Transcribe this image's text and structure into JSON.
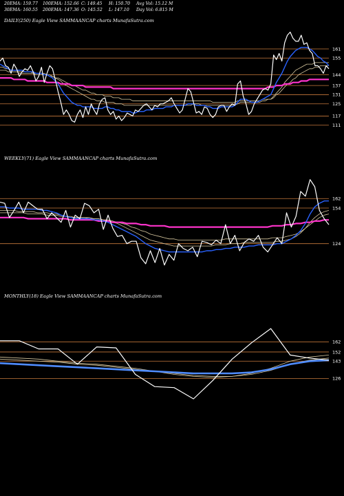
{
  "header": {
    "row1": [
      {
        "key": "ema20",
        "text": "20EMA: 159.77"
      },
      {
        "key": "ema100",
        "text": "100EMA: 152.66"
      },
      {
        "key": "close",
        "text": "C: 149.45"
      },
      {
        "key": "high",
        "text": "H: 150.70"
      },
      {
        "key": "avgvol",
        "text": "Avg Vol: 15.12  M"
      }
    ],
    "row2": [
      {
        "key": "ema30",
        "text": "30EMA: 160.55"
      },
      {
        "key": "ema200",
        "text": "200EMA: 147.36"
      },
      {
        "key": "open",
        "text": "O: 145.52"
      },
      {
        "key": "low",
        "text": "L: 147.10"
      },
      {
        "key": "dayvol",
        "text": "Day Vol: 6.815  M"
      }
    ]
  },
  "colors": {
    "background": "#000000",
    "price": "#ffffff",
    "ema_fast": "#2962ff",
    "ema_slow": "#ff33cc",
    "ema_band": "#d9c9a0",
    "level": "#c87a3c",
    "blue_alt": "#4f8cff"
  },
  "chart_data": [
    {
      "type": "line",
      "label": "DAILY(250) Eagle  View  SAMMAANCAP charts MunafaSutra.com",
      "ylim": [
        105,
        175
      ],
      "levels": [
        161,
        155,
        144,
        137,
        131,
        125,
        117,
        111
      ],
      "price": [
        153,
        155,
        150,
        149,
        145,
        151,
        148,
        143,
        146,
        148,
        147,
        150,
        146,
        140,
        143,
        149,
        139,
        145,
        150,
        148,
        141,
        133,
        126,
        118,
        121,
        118,
        114,
        113,
        118,
        121,
        116,
        123,
        118,
        125,
        121,
        118,
        125,
        128,
        129,
        121,
        118,
        120,
        115,
        117,
        114,
        116,
        119,
        118,
        117,
        121,
        120,
        122,
        124,
        125,
        123,
        121,
        124,
        123,
        125,
        125,
        126,
        127,
        129,
        125,
        122,
        119,
        121,
        128,
        135,
        133,
        126,
        119,
        120,
        118,
        123,
        122,
        118,
        116,
        118,
        123,
        124,
        124,
        120,
        123,
        125,
        124,
        138,
        140,
        130,
        125,
        118,
        120,
        125,
        128,
        131,
        134,
        135,
        134,
        138,
        157,
        154,
        158,
        153,
        165,
        170,
        172,
        168,
        166,
        166,
        170,
        164,
        165,
        160,
        158,
        150,
        150,
        148,
        145,
        150,
        148
      ],
      "ema_fast": [
        151,
        150,
        149,
        148,
        147,
        147,
        147,
        147,
        147,
        146,
        146,
        146,
        146,
        145,
        145,
        145,
        144,
        144,
        143,
        142,
        140,
        138,
        135,
        132,
        130,
        128,
        126,
        125,
        124,
        124,
        123,
        123,
        123,
        123,
        122,
        122,
        122,
        122,
        123,
        123,
        122,
        122,
        121,
        121,
        120,
        120,
        120,
        120,
        119,
        119,
        120,
        120,
        120,
        121,
        121,
        121,
        122,
        122,
        122,
        122,
        123,
        123,
        123,
        124,
        124,
        124,
        124,
        124,
        125,
        125,
        125,
        124,
        124,
        124,
        124,
        123,
        123,
        122,
        122,
        122,
        123,
        123,
        123,
        123,
        123,
        124,
        126,
        128,
        128,
        128,
        127,
        126,
        126,
        126,
        127,
        128,
        129,
        130,
        131,
        135,
        139,
        142,
        145,
        149,
        153,
        156,
        158,
        160,
        161,
        162,
        162,
        162,
        161,
        160,
        158,
        156,
        155,
        153,
        152,
        150
      ],
      "ema_slow": [
        142,
        142,
        142,
        142,
        142,
        141,
        141,
        141,
        141,
        141,
        140,
        140,
        140,
        140,
        140,
        140,
        140,
        139,
        139,
        139,
        139,
        139,
        138,
        138,
        138,
        138,
        137,
        137,
        137,
        137,
        137,
        136,
        136,
        136,
        136,
        136,
        136,
        136,
        136,
        136,
        136,
        135,
        135,
        135,
        135,
        135,
        135,
        135,
        135,
        135,
        135,
        135,
        135,
        135,
        135,
        135,
        135,
        135,
        135,
        135,
        135,
        135,
        135,
        135,
        135,
        135,
        135,
        135,
        135,
        135,
        135,
        135,
        135,
        135,
        135,
        135,
        135,
        135,
        135,
        135,
        135,
        135,
        135,
        135,
        135,
        135,
        135,
        135,
        135,
        135,
        135,
        135,
        135,
        135,
        135,
        135,
        135,
        136,
        136,
        136,
        137,
        137,
        137,
        138,
        138,
        138,
        139,
        139,
        139,
        140,
        140,
        140,
        141,
        141,
        141,
        141,
        141,
        141,
        141,
        141
      ],
      "ema_band_a": [
        149,
        149,
        148,
        148,
        147,
        147,
        147,
        146,
        146,
        146,
        146,
        146,
        145,
        145,
        145,
        145,
        145,
        144,
        144,
        143,
        142,
        141,
        140,
        138,
        137,
        136,
        135,
        134,
        133,
        132,
        131,
        130,
        129,
        128,
        128,
        127,
        127,
        127,
        126,
        126,
        126,
        126,
        125,
        125,
        125,
        124,
        124,
        124,
        124,
        124,
        124,
        124,
        124,
        124,
        124,
        124,
        124,
        124,
        124,
        124,
        124,
        124,
        124,
        124,
        124,
        124,
        124,
        124,
        124,
        124,
        125,
        125,
        125,
        124,
        124,
        124,
        124,
        124,
        124,
        124,
        124,
        124,
        124,
        124,
        124,
        124,
        125,
        126,
        126,
        126,
        126,
        126,
        126,
        126,
        126,
        127,
        127,
        128,
        128,
        130,
        132,
        134,
        136,
        139,
        141,
        143,
        145,
        147,
        148,
        149,
        150,
        151,
        151,
        151,
        152,
        152,
        152,
        152,
        152,
        152
      ],
      "ema_band_b": [
        147,
        147,
        147,
        146,
        146,
        146,
        146,
        145,
        145,
        145,
        145,
        145,
        145,
        144,
        144,
        144,
        144,
        144,
        143,
        143,
        142,
        142,
        141,
        140,
        139,
        138,
        137,
        137,
        136,
        135,
        134,
        134,
        133,
        132,
        132,
        131,
        131,
        131,
        130,
        130,
        130,
        129,
        129,
        129,
        128,
        128,
        128,
        128,
        127,
        127,
        127,
        127,
        127,
        127,
        127,
        127,
        127,
        127,
        127,
        127,
        127,
        127,
        127,
        127,
        127,
        127,
        127,
        127,
        127,
        127,
        127,
        127,
        127,
        127,
        127,
        127,
        127,
        126,
        126,
        126,
        126,
        126,
        126,
        126,
        126,
        126,
        127,
        127,
        127,
        127,
        127,
        127,
        127,
        127,
        127,
        128,
        128,
        128,
        128,
        129,
        131,
        132,
        134,
        136,
        138,
        139,
        141,
        142,
        144,
        145,
        146,
        147,
        148,
        148,
        149,
        149,
        150,
        150,
        150,
        150
      ]
    },
    {
      "type": "line",
      "label": "WEEKLY(71) Eagle  View  SAMMAANCAP charts MunafaSutra.com",
      "ylim": [
        100,
        190
      ],
      "levels": [
        162,
        154,
        124
      ],
      "price": [
        159,
        158,
        146,
        152,
        159,
        150,
        159,
        156,
        153,
        153,
        145,
        150,
        146,
        142,
        152,
        138,
        148,
        145,
        158,
        156,
        150,
        153,
        136,
        148,
        137,
        130,
        131,
        124,
        126,
        126,
        112,
        107,
        118,
        108,
        120,
        106,
        115,
        110,
        124,
        120,
        118,
        121,
        113,
        126,
        125,
        123,
        127,
        124,
        140,
        124,
        131,
        118,
        125,
        128,
        126,
        131,
        121,
        117,
        123,
        129,
        124,
        150,
        138,
        147,
        168,
        164,
        178,
        172,
        152,
        145,
        140
      ],
      "ema_fast": [
        155,
        155,
        154,
        154,
        154,
        153,
        153,
        153,
        153,
        152,
        152,
        151,
        150,
        148,
        147,
        146,
        145,
        145,
        145,
        145,
        144,
        144,
        143,
        142,
        140,
        138,
        136,
        134,
        132,
        130,
        127,
        124,
        122,
        120,
        119,
        118,
        117,
        117,
        117,
        117,
        117,
        117,
        117,
        117,
        118,
        118,
        119,
        119,
        120,
        120,
        121,
        121,
        121,
        122,
        122,
        123,
        123,
        123,
        123,
        124,
        124,
        126,
        128,
        131,
        135,
        141,
        149,
        155,
        158,
        160,
        160
      ],
      "ema_slow": [
        146,
        146,
        146,
        146,
        146,
        146,
        145,
        145,
        145,
        145,
        145,
        145,
        145,
        145,
        145,
        144,
        144,
        144,
        144,
        144,
        144,
        143,
        143,
        143,
        142,
        142,
        142,
        141,
        141,
        141,
        140,
        140,
        139,
        139,
        139,
        139,
        138,
        138,
        138,
        138,
        138,
        138,
        138,
        138,
        138,
        138,
        138,
        138,
        138,
        138,
        138,
        138,
        138,
        138,
        138,
        138,
        138,
        138,
        139,
        139,
        139,
        140,
        140,
        141,
        141,
        142,
        142,
        143,
        143,
        144,
        144
      ],
      "ema_band_a": [
        152,
        152,
        152,
        152,
        151,
        151,
        151,
        151,
        150,
        150,
        150,
        149,
        149,
        148,
        147,
        147,
        146,
        146,
        146,
        146,
        145,
        145,
        144,
        143,
        142,
        141,
        139,
        137,
        135,
        133,
        131,
        129,
        127,
        126,
        125,
        124,
        123,
        122,
        122,
        122,
        122,
        122,
        122,
        122,
        122,
        122,
        123,
        123,
        123,
        124,
        124,
        124,
        125,
        125,
        125,
        125,
        125,
        125,
        125,
        126,
        126,
        127,
        128,
        130,
        133,
        137,
        142,
        146,
        149,
        151,
        152
      ],
      "ema_band_b": [
        150,
        150,
        150,
        150,
        150,
        150,
        149,
        149,
        149,
        149,
        148,
        148,
        148,
        147,
        147,
        146,
        146,
        146,
        146,
        145,
        145,
        145,
        144,
        144,
        143,
        142,
        141,
        140,
        138,
        137,
        135,
        134,
        132,
        131,
        130,
        129,
        128,
        128,
        127,
        127,
        127,
        127,
        127,
        127,
        127,
        127,
        127,
        127,
        128,
        128,
        128,
        128,
        128,
        128,
        128,
        128,
        128,
        128,
        129,
        129,
        129,
        130,
        131,
        132,
        134,
        137,
        140,
        143,
        146,
        148,
        149
      ]
    },
    {
      "type": "line",
      "label": "MONTHLY(18) Eagle  View  SAMMAANCAP charts MunafaSutra.com",
      "ylim": [
        85,
        200
      ],
      "levels": [
        162,
        152,
        143,
        126
      ],
      "price": [
        163,
        163,
        155,
        155,
        140,
        157,
        156,
        130,
        118,
        117,
        106,
        124,
        145,
        161,
        175,
        149,
        146,
        144
      ],
      "ema_fast": [
        141,
        140,
        139,
        138,
        137,
        136,
        135,
        134,
        133,
        132,
        131,
        131,
        131,
        132,
        135,
        140,
        143,
        144
      ],
      "ema_band_a": [
        147,
        146,
        145,
        143,
        141,
        140,
        138,
        136,
        133,
        130,
        128,
        127,
        128,
        131,
        136,
        143,
        147,
        149
      ],
      "ema_band_b": [
        145,
        144,
        143,
        142,
        140,
        139,
        137,
        135,
        133,
        131,
        129,
        128,
        128,
        130,
        134,
        140,
        144,
        146
      ]
    }
  ]
}
